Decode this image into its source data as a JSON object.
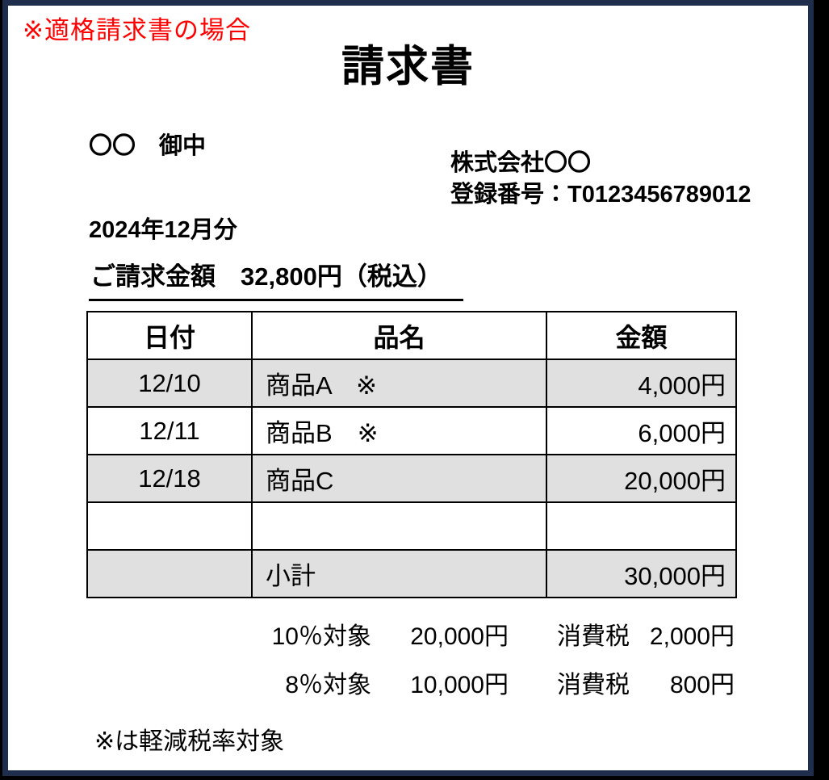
{
  "note_top": "※適格請求書の場合",
  "title": "請求書",
  "recipient": "〇〇　御中",
  "issuer": {
    "company": "株式会社〇〇",
    "registration": "登録番号：T0123456789012"
  },
  "period": "2024年12月分",
  "billing_line": "ご請求金額　32,800円（税込）",
  "table": {
    "headers": [
      "日付",
      "品名",
      "金額"
    ],
    "rows": [
      {
        "date": "12/10",
        "item": "商品A　※",
        "amount": "4,000円"
      },
      {
        "date": "12/11",
        "item": "商品B　※",
        "amount": "6,000円"
      },
      {
        "date": "12/18",
        "item": "商品C",
        "amount": "20,000円"
      },
      {
        "date": "",
        "item": "",
        "amount": ""
      },
      {
        "date": "",
        "item": "小計",
        "amount": "30,000円"
      }
    ]
  },
  "tax_summary": [
    {
      "target": "10％対象",
      "base": "20,000円",
      "tax_label": "消費税",
      "tax": "2,000円"
    },
    {
      "target": "8％対象",
      "base": "10,000円",
      "tax_label": "消費税",
      "tax": "800円"
    }
  ],
  "footnote": "※は軽減税率対象",
  "colors": {
    "frame_navy": "#1f2e4c",
    "row_shade": "#e0e0e0",
    "note_red": "#ff0000",
    "outer_black": "#000000"
  }
}
